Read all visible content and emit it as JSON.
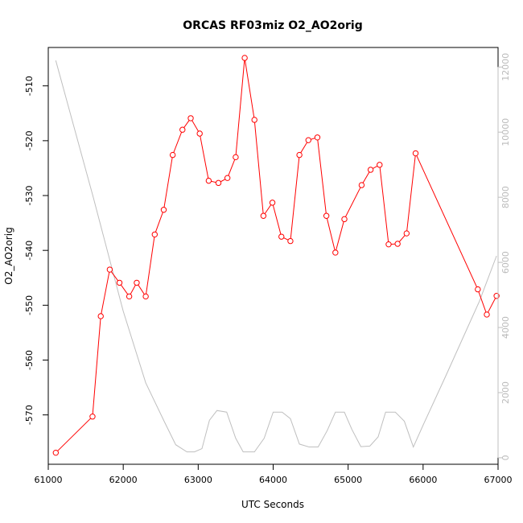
{
  "chart_data": {
    "type": "line",
    "title": "ORCAS RF03miz O2_AO2orig",
    "xlabel": "UTC Seconds",
    "ylabel": "O2_AO2orig",
    "xlim": [
      61000,
      67000
    ],
    "ylim": [
      -579,
      -503
    ],
    "y2lim": [
      -200,
      12600
    ],
    "xticks": [
      61000,
      62000,
      63000,
      64000,
      65000,
      66000,
      67000
    ],
    "yticks": [
      -570,
      -560,
      -550,
      -540,
      -530,
      -520,
      -510
    ],
    "y2ticks": [
      0,
      2000,
      4000,
      6000,
      8000,
      10000,
      12000
    ],
    "colors": {
      "primary": "#ff0000",
      "secondary": "#bfbfbf",
      "axis": "#000000"
    },
    "series": [
      {
        "role": "primary",
        "marker": "circle",
        "points": [
          [
            61100,
            -576.9
          ],
          [
            61590,
            -570.3
          ],
          [
            61700,
            -552.0
          ],
          [
            61820,
            -543.5
          ],
          [
            61950,
            -545.9
          ],
          [
            62080,
            -548.4
          ],
          [
            62180,
            -545.9
          ],
          [
            62300,
            -548.4
          ],
          [
            62420,
            -537.1
          ],
          [
            62540,
            -532.6
          ],
          [
            62660,
            -522.6
          ],
          [
            62790,
            -518.0
          ],
          [
            62900,
            -515.9
          ],
          [
            63020,
            -518.7
          ],
          [
            63140,
            -527.3
          ],
          [
            63270,
            -527.7
          ],
          [
            63390,
            -526.8
          ],
          [
            63500,
            -523.0
          ],
          [
            63620,
            -504.9
          ],
          [
            63750,
            -516.2
          ],
          [
            63870,
            -533.7
          ],
          [
            63990,
            -531.3
          ],
          [
            64110,
            -537.5
          ],
          [
            64230,
            -538.3
          ],
          [
            64350,
            -522.6
          ],
          [
            64470,
            -519.9
          ],
          [
            64590,
            -519.4
          ],
          [
            64710,
            -533.7
          ],
          [
            64830,
            -540.4
          ],
          [
            64950,
            -534.3
          ],
          [
            65180,
            -528.1
          ],
          [
            65300,
            -525.3
          ],
          [
            65420,
            -524.4
          ],
          [
            65540,
            -538.9
          ],
          [
            65660,
            -538.8
          ],
          [
            65780,
            -536.9
          ],
          [
            65900,
            -522.3
          ],
          [
            66730,
            -547.1
          ],
          [
            66850,
            -551.7
          ],
          [
            66980,
            -548.3
          ]
        ]
      },
      {
        "role": "secondary",
        "marker": "none",
        "points": [
          [
            61100,
            12200
          ],
          [
            61600,
            8000
          ],
          [
            62000,
            4500
          ],
          [
            62300,
            2300
          ],
          [
            62550,
            1100
          ],
          [
            62700,
            400
          ],
          [
            62850,
            180
          ],
          [
            62950,
            180
          ],
          [
            63050,
            280
          ],
          [
            63150,
            1150
          ],
          [
            63250,
            1450
          ],
          [
            63380,
            1400
          ],
          [
            63500,
            600
          ],
          [
            63600,
            180
          ],
          [
            63750,
            180
          ],
          [
            63880,
            600
          ],
          [
            64000,
            1400
          ],
          [
            64120,
            1400
          ],
          [
            64230,
            1200
          ],
          [
            64350,
            420
          ],
          [
            64480,
            330
          ],
          [
            64600,
            330
          ],
          [
            64720,
            830
          ],
          [
            64830,
            1400
          ],
          [
            64950,
            1400
          ],
          [
            65050,
            870
          ],
          [
            65170,
            340
          ],
          [
            65290,
            360
          ],
          [
            65400,
            640
          ],
          [
            65500,
            1400
          ],
          [
            65630,
            1400
          ],
          [
            65750,
            1120
          ],
          [
            65870,
            330
          ],
          [
            66000,
            1000
          ],
          [
            66300,
            2500
          ],
          [
            66750,
            4800
          ],
          [
            66980,
            6200
          ]
        ]
      }
    ]
  }
}
